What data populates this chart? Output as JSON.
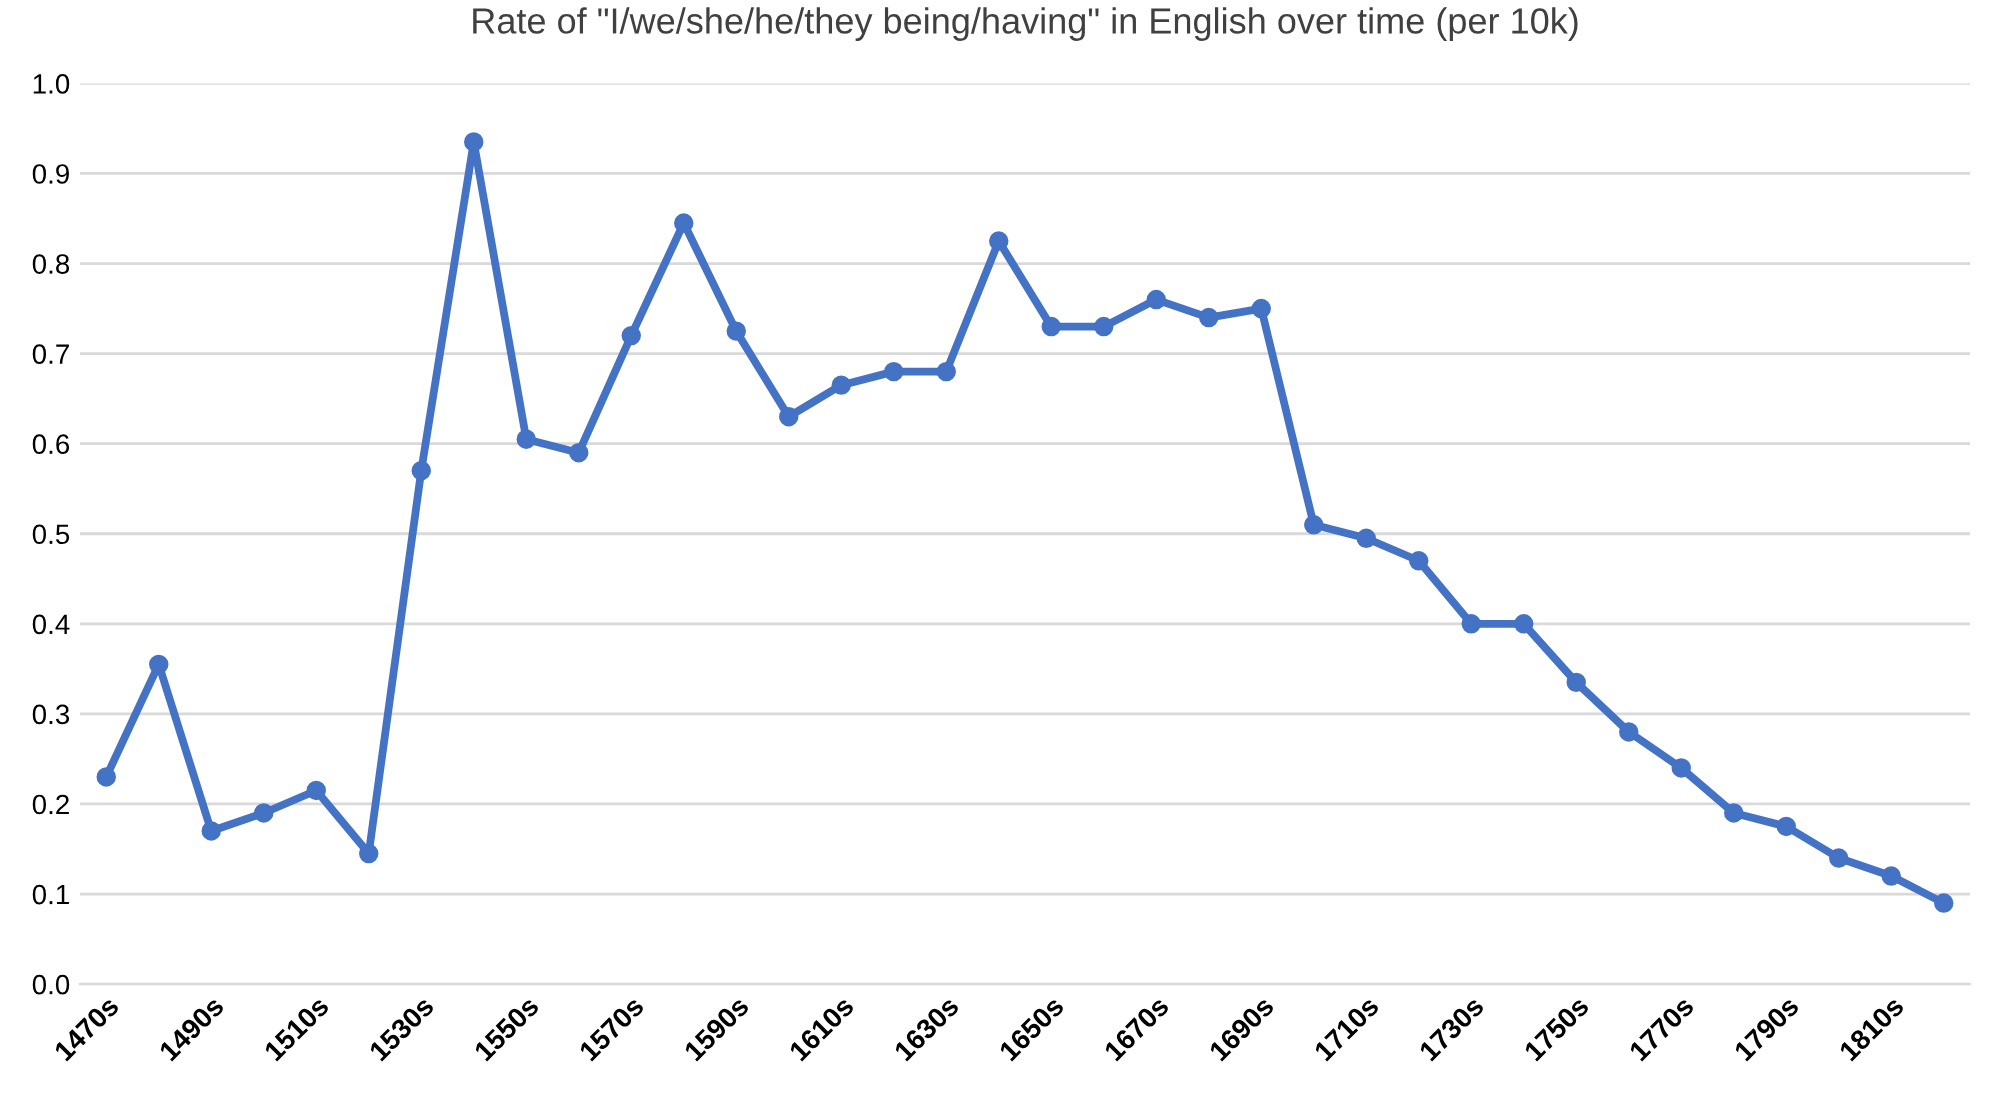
{
  "chart_data": {
    "type": "line",
    "title": "Rate of \"I/we/she/he/they being/having\" in English over time (per 10k)",
    "categories": [
      "1470s",
      null,
      "1490s",
      null,
      "1510s",
      null,
      "1530s",
      null,
      "1550s",
      null,
      "1570s",
      null,
      "1590s",
      null,
      "1610s",
      null,
      "1630s",
      null,
      "1650s",
      null,
      "1670s",
      null,
      "1690s",
      null,
      "1710s",
      null,
      "1730s",
      null,
      "1750s",
      null,
      "1770s",
      null,
      "1790s",
      null,
      "1810s",
      null
    ],
    "series": [
      {
        "color": "#4472c4",
        "values": [
          0.23,
          0.355,
          0.17,
          0.19,
          0.215,
          0.145,
          0.57,
          0.935,
          0.605,
          0.59,
          0.72,
          0.845,
          0.725,
          0.63,
          0.665,
          0.68,
          0.68,
          0.825,
          0.73,
          0.73,
          0.76,
          0.74,
          0.75,
          0.51,
          0.495,
          0.47,
          0.4,
          0.4,
          0.335,
          0.28,
          0.24,
          0.19,
          0.175,
          0.14,
          0.12,
          0.09
        ]
      }
    ],
    "ylim": [
      0,
      1
    ],
    "yticks": [
      {
        "value": 0,
        "label": "0.0"
      },
      {
        "value": 0.1,
        "label": "0.1"
      },
      {
        "value": 0.2,
        "label": "0.2"
      },
      {
        "value": 0.3,
        "label": "0.3"
      },
      {
        "value": 0.4,
        "label": "0.4"
      },
      {
        "value": 0.5,
        "label": "0.5"
      },
      {
        "value": 0.6,
        "label": "0.6"
      },
      {
        "value": 0.7,
        "label": "0.7"
      },
      {
        "value": 0.8,
        "label": "0.8"
      },
      {
        "value": 0.9,
        "label": "0.9"
      },
      {
        "value": 1,
        "label": "1.0"
      }
    ],
    "grid": "y",
    "marker": "circle",
    "line_style": "solid"
  }
}
